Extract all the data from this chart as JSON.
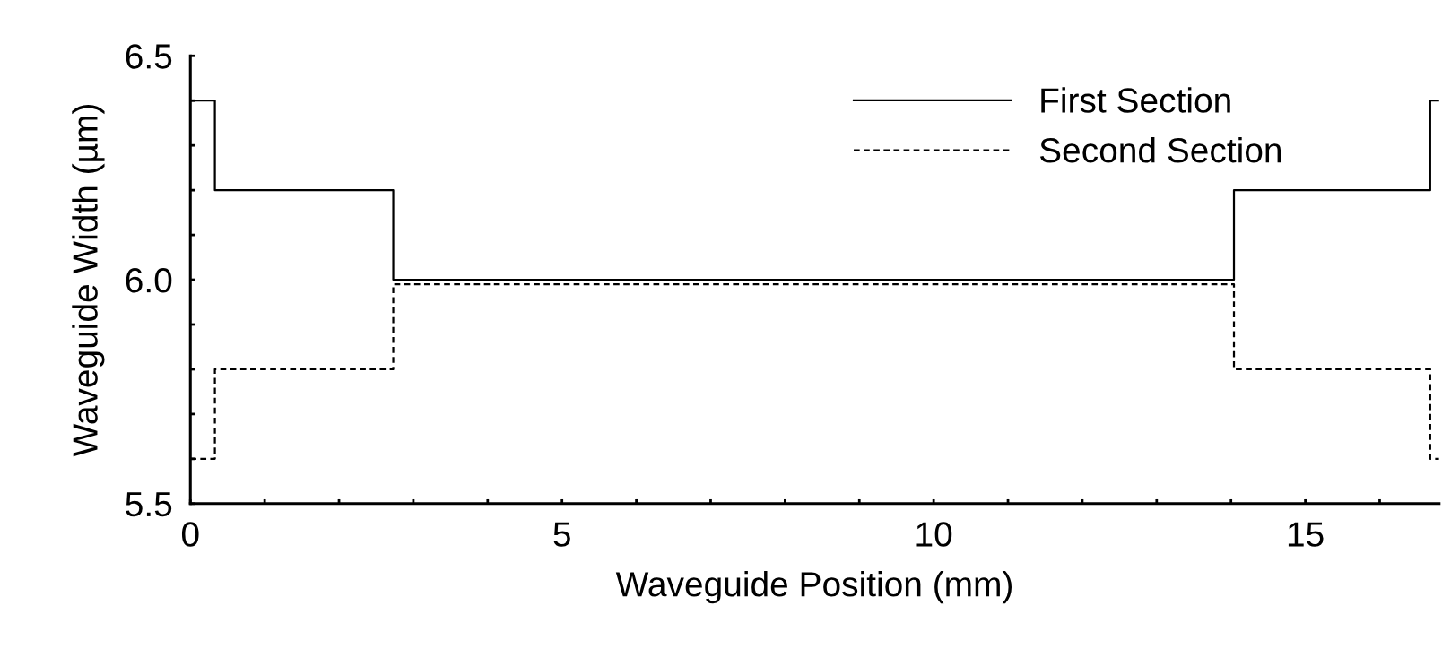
{
  "chart_data": {
    "type": "step",
    "xlabel": "Waveguide Position (mm)",
    "ylabel": "Waveguide Width (µm)",
    "x": [
      0,
      0.33,
      2.73,
      14.04,
      16.68,
      16.8
    ],
    "series": [
      {
        "name": "First Section",
        "color": "#000000",
        "line_style": "solid",
        "values": [
          6.4,
          6.2,
          6.0,
          6.2,
          6.4,
          6.4
        ]
      },
      {
        "name": "Second Section",
        "color": "#000000",
        "line_style": "dashed",
        "values": [
          5.6,
          5.8,
          5.99,
          5.8,
          5.6,
          5.6
        ]
      }
    ],
    "xlim": [
      0,
      16.8
    ],
    "ylim": [
      5.5,
      6.5
    ],
    "xticks": [
      0,
      {
        "value": 1,
        "label": null
      },
      {
        "value": 2,
        "label": null
      },
      {
        "value": 3,
        "label": null
      },
      {
        "value": 4,
        "label": null
      },
      5,
      {
        "value": 6,
        "label": null
      },
      {
        "value": 7,
        "label": null
      },
      {
        "value": 8,
        "label": null
      },
      {
        "value": 9,
        "label": null
      },
      10,
      {
        "value": 11,
        "label": null
      },
      {
        "value": 12,
        "label": null
      },
      {
        "value": 13,
        "label": null
      },
      {
        "value": 14,
        "label": null
      },
      15,
      {
        "value": 16,
        "label": null
      }
    ],
    "yticks": [
      {
        "value": 5.5,
        "label": "5.5"
      },
      {
        "value": 5.6,
        "label": null
      },
      {
        "value": 5.7,
        "label": null
      },
      {
        "value": 5.8,
        "label": null
      },
      {
        "value": 5.9,
        "label": null
      },
      {
        "value": 6.0,
        "label": "6.0"
      },
      {
        "value": 6.1,
        "label": null
      },
      {
        "value": 6.2,
        "label": null
      },
      {
        "value": 6.3,
        "label": null
      },
      {
        "value": 6.4,
        "label": null
      },
      {
        "value": 6.5,
        "label": "6.5"
      }
    ],
    "legend": "top right",
    "grid": false
  }
}
